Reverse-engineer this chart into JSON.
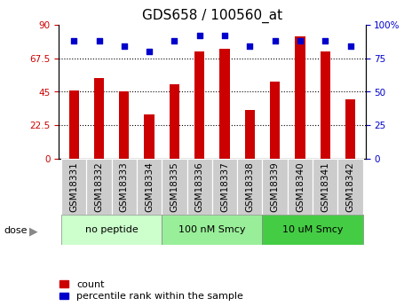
{
  "title": "GDS658 / 100560_at",
  "samples": [
    "GSM18331",
    "GSM18332",
    "GSM18333",
    "GSM18334",
    "GSM18335",
    "GSM18336",
    "GSM18337",
    "GSM18338",
    "GSM18339",
    "GSM18340",
    "GSM18341",
    "GSM18342"
  ],
  "bar_values": [
    46,
    54,
    45,
    30,
    50,
    72,
    74,
    33,
    52,
    82,
    72,
    40
  ],
  "dot_values": [
    88,
    88,
    84,
    80,
    88,
    92,
    92,
    84,
    88,
    88,
    88,
    84
  ],
  "bar_color": "#cc0000",
  "dot_color": "#0000cc",
  "left_ylim": [
    0,
    90
  ],
  "right_ylim": [
    0,
    100
  ],
  "left_yticks": [
    0,
    22.5,
    45,
    67.5,
    90
  ],
  "right_yticks": [
    0,
    25,
    50,
    75,
    100
  ],
  "left_yticklabels": [
    "0",
    "22.5",
    "45",
    "67.5",
    "90"
  ],
  "right_yticklabels": [
    "0",
    "25",
    "50",
    "75",
    "100%"
  ],
  "hlines": [
    22.5,
    45,
    67.5
  ],
  "groups": [
    {
      "label": "no peptide",
      "start": 0,
      "end": 4,
      "color": "#ccffcc"
    },
    {
      "label": "100 nM Smcy",
      "start": 4,
      "end": 8,
      "color": "#99ee99"
    },
    {
      "label": "10 uM Smcy",
      "start": 8,
      "end": 12,
      "color": "#44cc44"
    }
  ],
  "dose_label": "dose",
  "legend_bar_label": "count",
  "legend_dot_label": "percentile rank within the sample",
  "background_color": "#ffffff",
  "tick_bg_color": "#cccccc",
  "title_fontsize": 11,
  "tick_fontsize": 7.5,
  "label_fontsize": 8,
  "group_fontsize": 8
}
